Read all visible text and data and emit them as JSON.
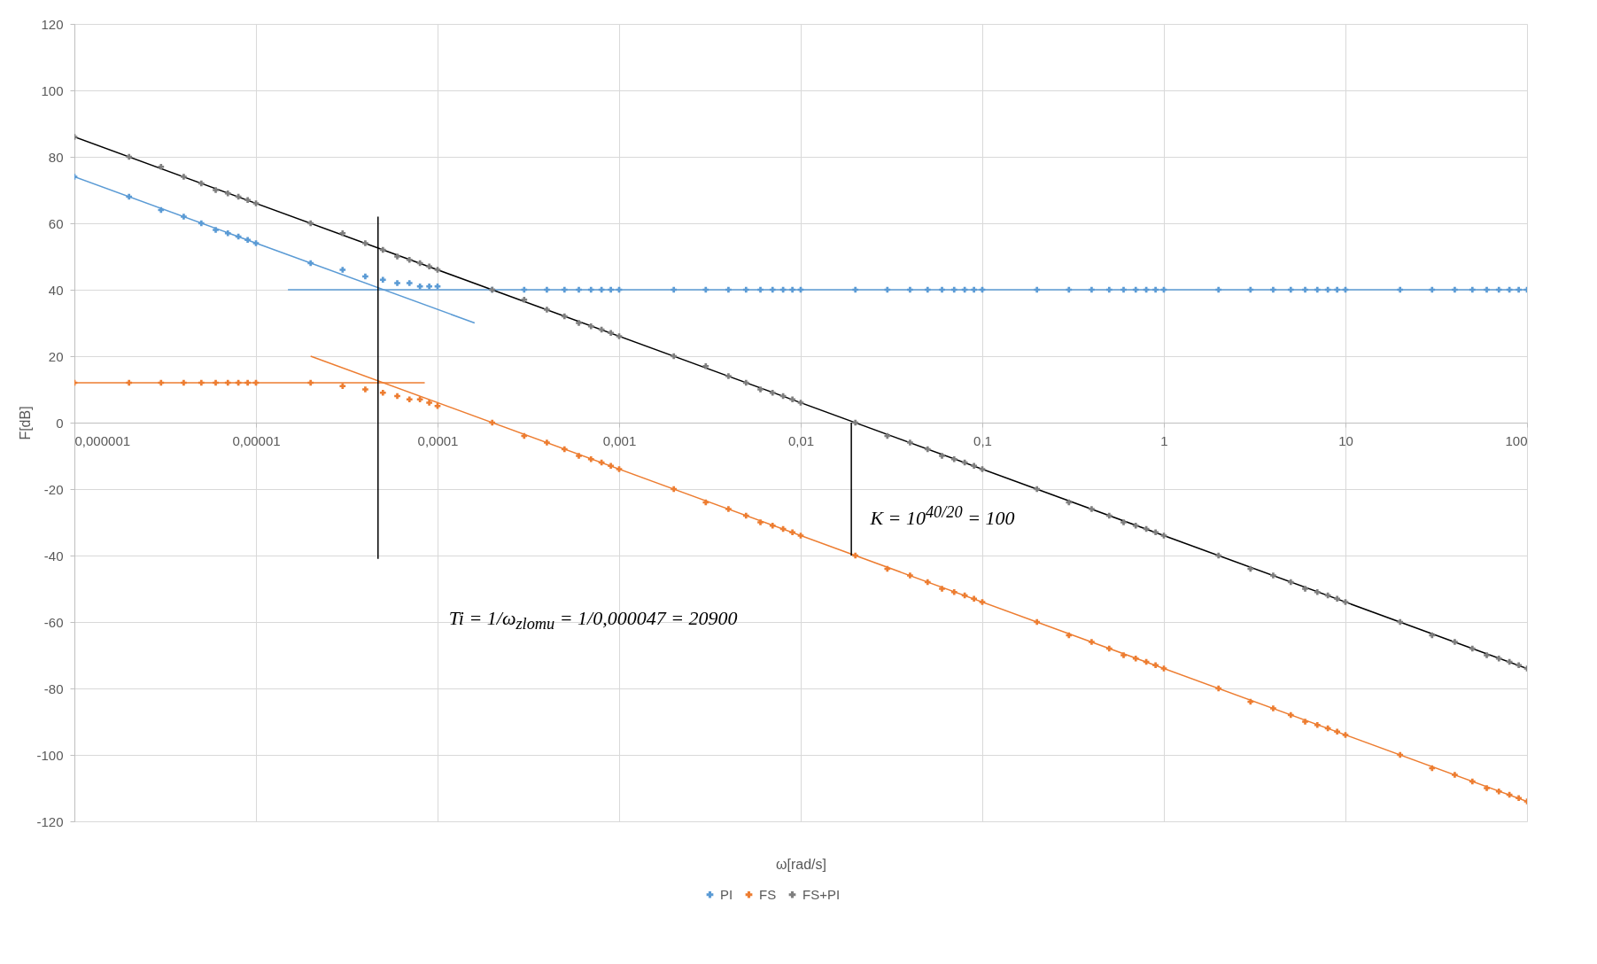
{
  "chart_data": {
    "type": "scatter",
    "xlabel": "ω[rad/s]",
    "ylabel": "F[dB]",
    "log": "x",
    "grid": true,
    "legend": "bottom",
    "marker": "cross",
    "xlim": [
      1e-06,
      100
    ],
    "ylim": [
      -120,
      120
    ],
    "xticks": [
      {
        "value": 1e-06,
        "label": "0,000001"
      },
      {
        "value": 1e-05,
        "label": "0,00001"
      },
      {
        "value": 0.0001,
        "label": "0,0001"
      },
      {
        "value": 0.001,
        "label": "0,001"
      },
      {
        "value": 0.01,
        "label": "0,01"
      },
      {
        "value": 0.1,
        "label": "0,1"
      },
      1,
      10,
      100
    ],
    "yticks": [
      -120,
      -100,
      -80,
      -60,
      -40,
      -20,
      0,
      20,
      40,
      60,
      80,
      100,
      120
    ],
    "x": [
      1e-06,
      2e-06,
      3e-06,
      4e-06,
      5e-06,
      6e-06,
      7e-06,
      8e-06,
      9e-06,
      1e-05,
      2e-05,
      3e-05,
      4e-05,
      5e-05,
      6e-05,
      7e-05,
      8e-05,
      9e-05,
      0.0001,
      0.0002,
      0.0003,
      0.0004,
      0.0005,
      0.0006,
      0.0007,
      0.0008,
      0.0009,
      0.001,
      0.002,
      0.003,
      0.004,
      0.005,
      0.006,
      0.007,
      0.008,
      0.009,
      0.01,
      0.02,
      0.03,
      0.04,
      0.05,
      0.06,
      0.07,
      0.08,
      0.09,
      0.1,
      0.2,
      0.3,
      0.4,
      0.5,
      0.6,
      0.7,
      0.8,
      0.9,
      1,
      2,
      3,
      4,
      5,
      6,
      7,
      8,
      9,
      10,
      20,
      30,
      40,
      50,
      60,
      70,
      80,
      90,
      100
    ],
    "series": [
      {
        "name": "PI",
        "color": "#5b9bd5",
        "values": [
          74,
          68,
          64,
          62,
          60,
          58,
          57,
          56,
          55,
          54,
          48,
          46,
          44,
          43,
          42,
          42,
          41,
          41,
          41,
          40,
          40,
          40,
          40,
          40,
          40,
          40,
          40,
          40,
          40,
          40,
          40,
          40,
          40,
          40,
          40,
          40,
          40,
          40,
          40,
          40,
          40,
          40,
          40,
          40,
          40,
          40,
          40,
          40,
          40,
          40,
          40,
          40,
          40,
          40,
          40,
          40,
          40,
          40,
          40,
          40,
          40,
          40,
          40,
          40,
          40,
          40,
          40,
          40,
          40,
          40,
          40,
          40,
          40
        ]
      },
      {
        "name": "FS",
        "color": "#ed7d31",
        "values": [
          12,
          12,
          12,
          12,
          12,
          12,
          12,
          12,
          12,
          12,
          12,
          11,
          10,
          9,
          8,
          7,
          7,
          6,
          5,
          0,
          -4,
          -6,
          -8,
          -10,
          -11,
          -12,
          -13,
          -14,
          -20,
          -24,
          -26,
          -28,
          -30,
          -31,
          -32,
          -33,
          -34,
          -40,
          -44,
          -46,
          -48,
          -50,
          -51,
          -52,
          -53,
          -54,
          -60,
          -64,
          -66,
          -68,
          -70,
          -71,
          -72,
          -73,
          -74,
          -80,
          -84,
          -86,
          -88,
          -90,
          -91,
          -92,
          -93,
          -94,
          -100,
          -104,
          -106,
          -108,
          -110,
          -111,
          -112,
          -113,
          -114
        ]
      },
      {
        "name": "FS+PI",
        "color": "#7f7f7f",
        "values": [
          86,
          80,
          77,
          74,
          72,
          70,
          69,
          68,
          67,
          66,
          60,
          57,
          54,
          52,
          50,
          49,
          48,
          47,
          46,
          40,
          37,
          34,
          32,
          30,
          29,
          28,
          27,
          26,
          20,
          17,
          14,
          12,
          10,
          9,
          8,
          7,
          6,
          0,
          -4,
          -6,
          -8,
          -10,
          -11,
          -12,
          -13,
          -14,
          -20,
          -24,
          -26,
          -28,
          -30,
          -31,
          -32,
          -33,
          -34,
          -40,
          -44,
          -46,
          -48,
          -50,
          -51,
          -52,
          -53,
          -54,
          -60,
          -64,
          -66,
          -68,
          -70,
          -71,
          -72,
          -73,
          -74
        ]
      },
      {
        "type": "line",
        "marker": "none",
        "color": "#5b9bd5",
        "x": [
          1e-06,
          0.00016
        ],
        "values": [
          74,
          30
        ]
      },
      {
        "type": "line",
        "marker": "none",
        "color": "#5b9bd5",
        "x": [
          1.5e-05,
          100
        ],
        "values": [
          40,
          40
        ]
      },
      {
        "type": "line",
        "marker": "none",
        "color": "#ed7d31",
        "x": [
          1e-06,
          8.5e-05
        ],
        "values": [
          12,
          12
        ]
      },
      {
        "type": "line",
        "marker": "none",
        "color": "#ed7d31",
        "x": [
          2e-05,
          100
        ],
        "values": [
          20,
          -114
        ]
      },
      {
        "type": "line",
        "marker": "none",
        "color": "#000000",
        "x": [
          1e-06,
          100
        ],
        "values": [
          86,
          -74
        ]
      },
      {
        "type": "line",
        "marker": "none",
        "color": "#000000",
        "x": [
          4.7e-05,
          4.7e-05
        ],
        "values": [
          62,
          -41
        ]
      },
      {
        "type": "line",
        "marker": "none",
        "color": "#000000",
        "x": [
          0.019,
          0.019
        ],
        "values": [
          0,
          -40
        ]
      }
    ],
    "annotations": [
      "K = 10$^{40/20}$ = 100",
      "Ti = 1/ω$_{zlomu}$ = 1/0,000047 = 20900"
    ]
  }
}
